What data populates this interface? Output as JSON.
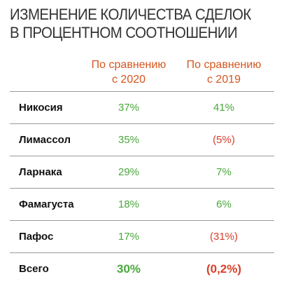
{
  "title": {
    "line1": "ИЗМЕНЕНИЕ КОЛИЧЕСТВА СДЕЛОК",
    "line2": "В ПРОЦЕНТНОМ СООТНОШЕНИИ"
  },
  "columns": {
    "c2020": {
      "line1": "По сравнению",
      "line2": "с 2020"
    },
    "c2019": {
      "line1": "По сравнению",
      "line2": "с 2019"
    }
  },
  "colors": {
    "header_accent": "#d4561f",
    "positive": "#48a83a",
    "negative": "#d8402a"
  },
  "rows": [
    {
      "city": "Никосия",
      "v2020": "37%",
      "v2019": "41%"
    },
    {
      "city": "Лимассол",
      "v2020": "35%",
      "v2019": "(5%)"
    },
    {
      "city": "Ларнака",
      "v2020": "29%",
      "v2019": "7%"
    },
    {
      "city": "Фамагуста",
      "v2020": "18%",
      "v2019": "6%"
    },
    {
      "city": "Пафос",
      "v2020": "17%",
      "v2019": "(31%)"
    },
    {
      "city": "Всего",
      "v2020": "30%",
      "v2019": "(0,2%)"
    }
  ]
}
